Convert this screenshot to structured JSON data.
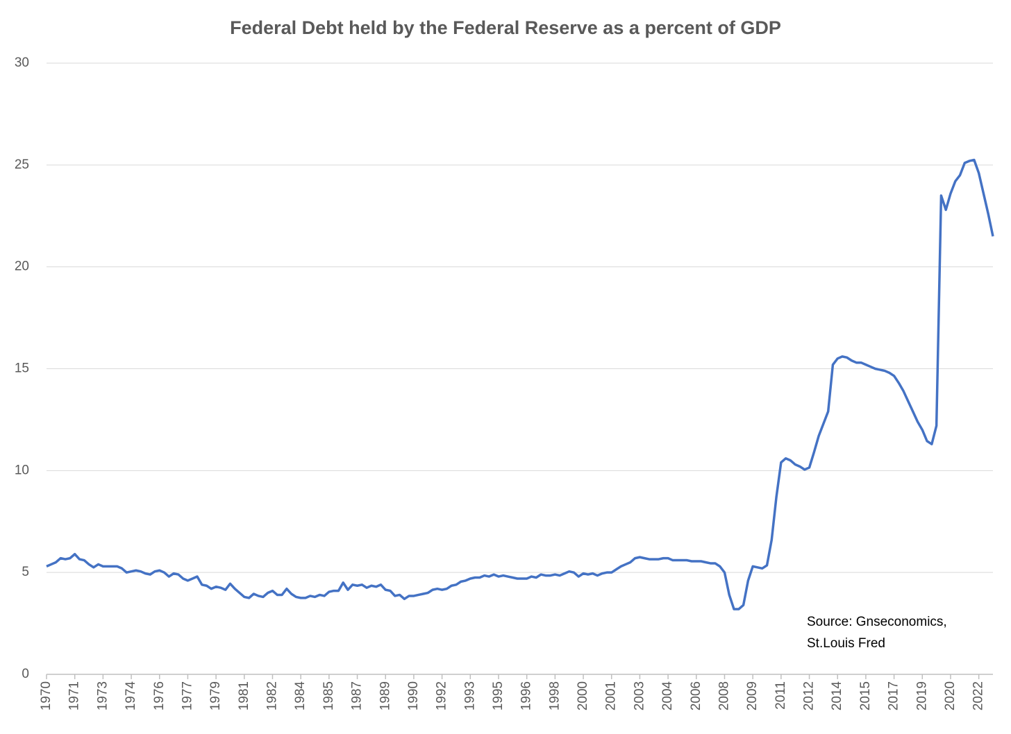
{
  "chart_data": {
    "type": "line",
    "title": "Federal Debt held by the Federal Reserve as a percent of GDP",
    "annotation": [
      "Source: Gnseconomics,",
      "St.Louis Fred"
    ],
    "categories": [
      "1970",
      null,
      null,
      null,
      null,
      null,
      "1971",
      null,
      null,
      null,
      null,
      null,
      "1973",
      null,
      null,
      null,
      null,
      null,
      "1974",
      null,
      null,
      null,
      null,
      null,
      "1976",
      null,
      null,
      null,
      null,
      null,
      "1977",
      null,
      null,
      null,
      null,
      null,
      "1979",
      null,
      null,
      null,
      null,
      null,
      "1981",
      null,
      null,
      null,
      null,
      null,
      "1982",
      null,
      null,
      null,
      null,
      null,
      "1984",
      null,
      null,
      null,
      null,
      null,
      "1985",
      null,
      null,
      null,
      null,
      null,
      "1987",
      null,
      null,
      null,
      null,
      null,
      "1989",
      null,
      null,
      null,
      null,
      null,
      "1990",
      null,
      null,
      null,
      null,
      null,
      "1992",
      null,
      null,
      null,
      null,
      null,
      "1993",
      null,
      null,
      null,
      null,
      null,
      "1995",
      null,
      null,
      null,
      null,
      null,
      "1996",
      null,
      null,
      null,
      null,
      null,
      "1998",
      null,
      null,
      null,
      null,
      null,
      "2000",
      null,
      null,
      null,
      null,
      null,
      "2001",
      null,
      null,
      null,
      null,
      null,
      "2003",
      null,
      null,
      null,
      null,
      null,
      "2004",
      null,
      null,
      null,
      null,
      null,
      "2006",
      null,
      null,
      null,
      null,
      null,
      "2008",
      null,
      null,
      null,
      null,
      null,
      "2009",
      null,
      null,
      null,
      null,
      null,
      "2011",
      null,
      null,
      null,
      null,
      null,
      "2012",
      null,
      null,
      null,
      null,
      null,
      "2014",
      null,
      null,
      null,
      null,
      null,
      "2015",
      null,
      null,
      null,
      null,
      null,
      "2017",
      null,
      null,
      null,
      null,
      null,
      "2019",
      null,
      null,
      null,
      null,
      null,
      "2020",
      null,
      null,
      null,
      null,
      null,
      "2022",
      null,
      null,
      null
    ],
    "series": [
      {
        "name": "Federal Debt held by the Federal Reserve",
        "color": "#4472c4",
        "values": [
          5.3,
          5.4,
          5.5,
          5.7,
          5.65,
          5.7,
          5.9,
          5.65,
          5.6,
          5.4,
          5.25,
          5.4,
          5.3,
          5.3,
          5.3,
          5.3,
          5.2,
          5.0,
          5.05,
          5.1,
          5.05,
          4.95,
          4.9,
          5.05,
          5.1,
          5.0,
          4.8,
          4.95,
          4.9,
          4.7,
          4.6,
          4.7,
          4.8,
          4.4,
          4.35,
          4.2,
          4.3,
          4.25,
          4.15,
          4.45,
          4.2,
          4.0,
          3.8,
          3.75,
          3.95,
          3.85,
          3.8,
          4.0,
          4.1,
          3.9,
          3.9,
          4.2,
          3.95,
          3.8,
          3.75,
          3.75,
          3.85,
          3.8,
          3.9,
          3.85,
          4.05,
          4.1,
          4.1,
          4.5,
          4.15,
          4.4,
          4.35,
          4.4,
          4.25,
          4.35,
          4.3,
          4.4,
          4.15,
          4.1,
          3.85,
          3.9,
          3.7,
          3.85,
          3.85,
          3.9,
          3.95,
          4.0,
          4.15,
          4.2,
          4.15,
          4.2,
          4.35,
          4.4,
          4.55,
          4.6,
          4.7,
          4.75,
          4.75,
          4.85,
          4.8,
          4.9,
          4.8,
          4.85,
          4.8,
          4.75,
          4.7,
          4.7,
          4.7,
          4.8,
          4.75,
          4.9,
          4.85,
          4.85,
          4.9,
          4.85,
          4.95,
          5.05,
          5.0,
          4.8,
          4.95,
          4.9,
          4.95,
          4.85,
          4.95,
          5.0,
          5.0,
          5.15,
          5.3,
          5.4,
          5.5,
          5.7,
          5.75,
          5.7,
          5.65,
          5.65,
          5.65,
          5.7,
          5.7,
          5.6,
          5.6,
          5.6,
          5.6,
          5.55,
          5.55,
          5.55,
          5.5,
          5.45,
          5.45,
          5.3,
          5.0,
          3.9,
          3.2,
          3.2,
          3.4,
          4.6,
          5.3,
          5.25,
          5.2,
          5.35,
          6.6,
          8.7,
          10.4,
          10.6,
          10.5,
          10.3,
          10.2,
          10.05,
          10.15,
          10.9,
          11.7,
          12.3,
          12.9,
          15.2,
          15.5,
          15.6,
          15.55,
          15.4,
          15.3,
          15.3,
          15.2,
          15.1,
          15.0,
          14.95,
          14.9,
          14.8,
          14.65,
          14.3,
          13.9,
          13.4,
          12.9,
          12.4,
          12.0,
          11.45,
          11.3,
          12.2,
          23.5,
          22.8,
          23.6,
          24.2,
          24.5,
          25.1,
          25.2,
          25.25,
          24.6,
          23.6,
          22.6,
          21.5
        ]
      }
    ],
    "ylim": [
      0,
      30
    ],
    "yticks": [
      0,
      5,
      10,
      15,
      20,
      25,
      30
    ],
    "grid": true
  }
}
